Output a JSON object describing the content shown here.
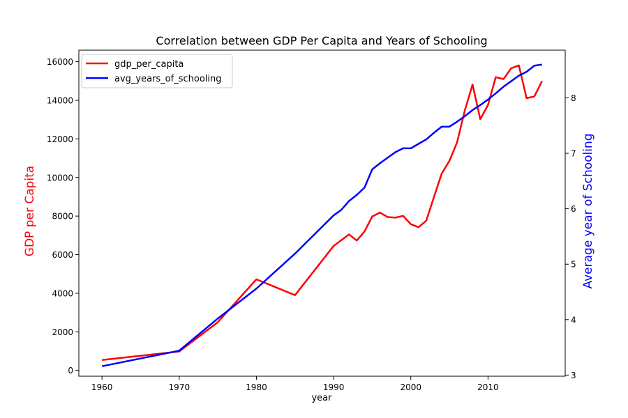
{
  "chart_data": {
    "type": "line",
    "title": "Correlation between GDP Per Capita and Years of Schooling",
    "xlabel": "year",
    "ylabel_left": "GDP per Capita",
    "ylabel_right": "Average year of Schooling",
    "xlim": [
      1957,
      2020
    ],
    "ylim_left": [
      -300,
      16600
    ],
    "ylim_right": [
      2.98,
      8.86
    ],
    "x_ticks": [
      1960,
      1970,
      1980,
      1990,
      2000,
      2010
    ],
    "y_ticks_left": [
      0,
      2000,
      4000,
      6000,
      8000,
      10000,
      12000,
      14000,
      16000
    ],
    "y_ticks_right": [
      3,
      4,
      5,
      6,
      7,
      8
    ],
    "grid": false,
    "legend_position": "top-left",
    "series": [
      {
        "name": "gdp_per_capita",
        "axis": "left",
        "color": "#ff0000",
        "x": [
          1960,
          1970,
          1975,
          1980,
          1985,
          1990,
          1991,
          1992,
          1993,
          1994,
          1995,
          1996,
          1997,
          1998,
          1999,
          2000,
          2001,
          2002,
          2003,
          2004,
          2005,
          2006,
          2007,
          2008,
          2009,
          2010,
          2011,
          2012,
          2013,
          2014,
          2015,
          2016,
          2017
        ],
        "values": [
          540,
          980,
          2500,
          4720,
          3900,
          6450,
          6750,
          7050,
          6730,
          7200,
          7980,
          8180,
          7950,
          7920,
          8010,
          7580,
          7420,
          7760,
          8990,
          10200,
          10860,
          11830,
          13480,
          14820,
          13020,
          13760,
          15200,
          15100,
          15660,
          15810,
          14110,
          14200,
          15000
        ]
      },
      {
        "name": "avg_years_of_schooling",
        "axis": "right",
        "color": "#0000ff",
        "x": [
          1960,
          1970,
          1975,
          1980,
          1985,
          1990,
          1991,
          1992,
          1993,
          1994,
          1995,
          1996,
          1997,
          1998,
          1999,
          2000,
          2001,
          2002,
          2003,
          2004,
          2005,
          2006,
          2007,
          2008,
          2009,
          2010,
          2011,
          2012,
          2013,
          2014,
          2015,
          2016,
          2017
        ],
        "values": [
          3.16,
          3.44,
          4.02,
          4.56,
          5.19,
          5.88,
          5.98,
          6.14,
          6.25,
          6.38,
          6.71,
          6.82,
          6.92,
          7.02,
          7.09,
          7.09,
          7.17,
          7.25,
          7.37,
          7.48,
          7.48,
          7.57,
          7.67,
          7.78,
          7.87,
          7.97,
          8.08,
          8.2,
          8.3,
          8.4,
          8.47,
          8.58,
          8.6
        ]
      }
    ]
  }
}
